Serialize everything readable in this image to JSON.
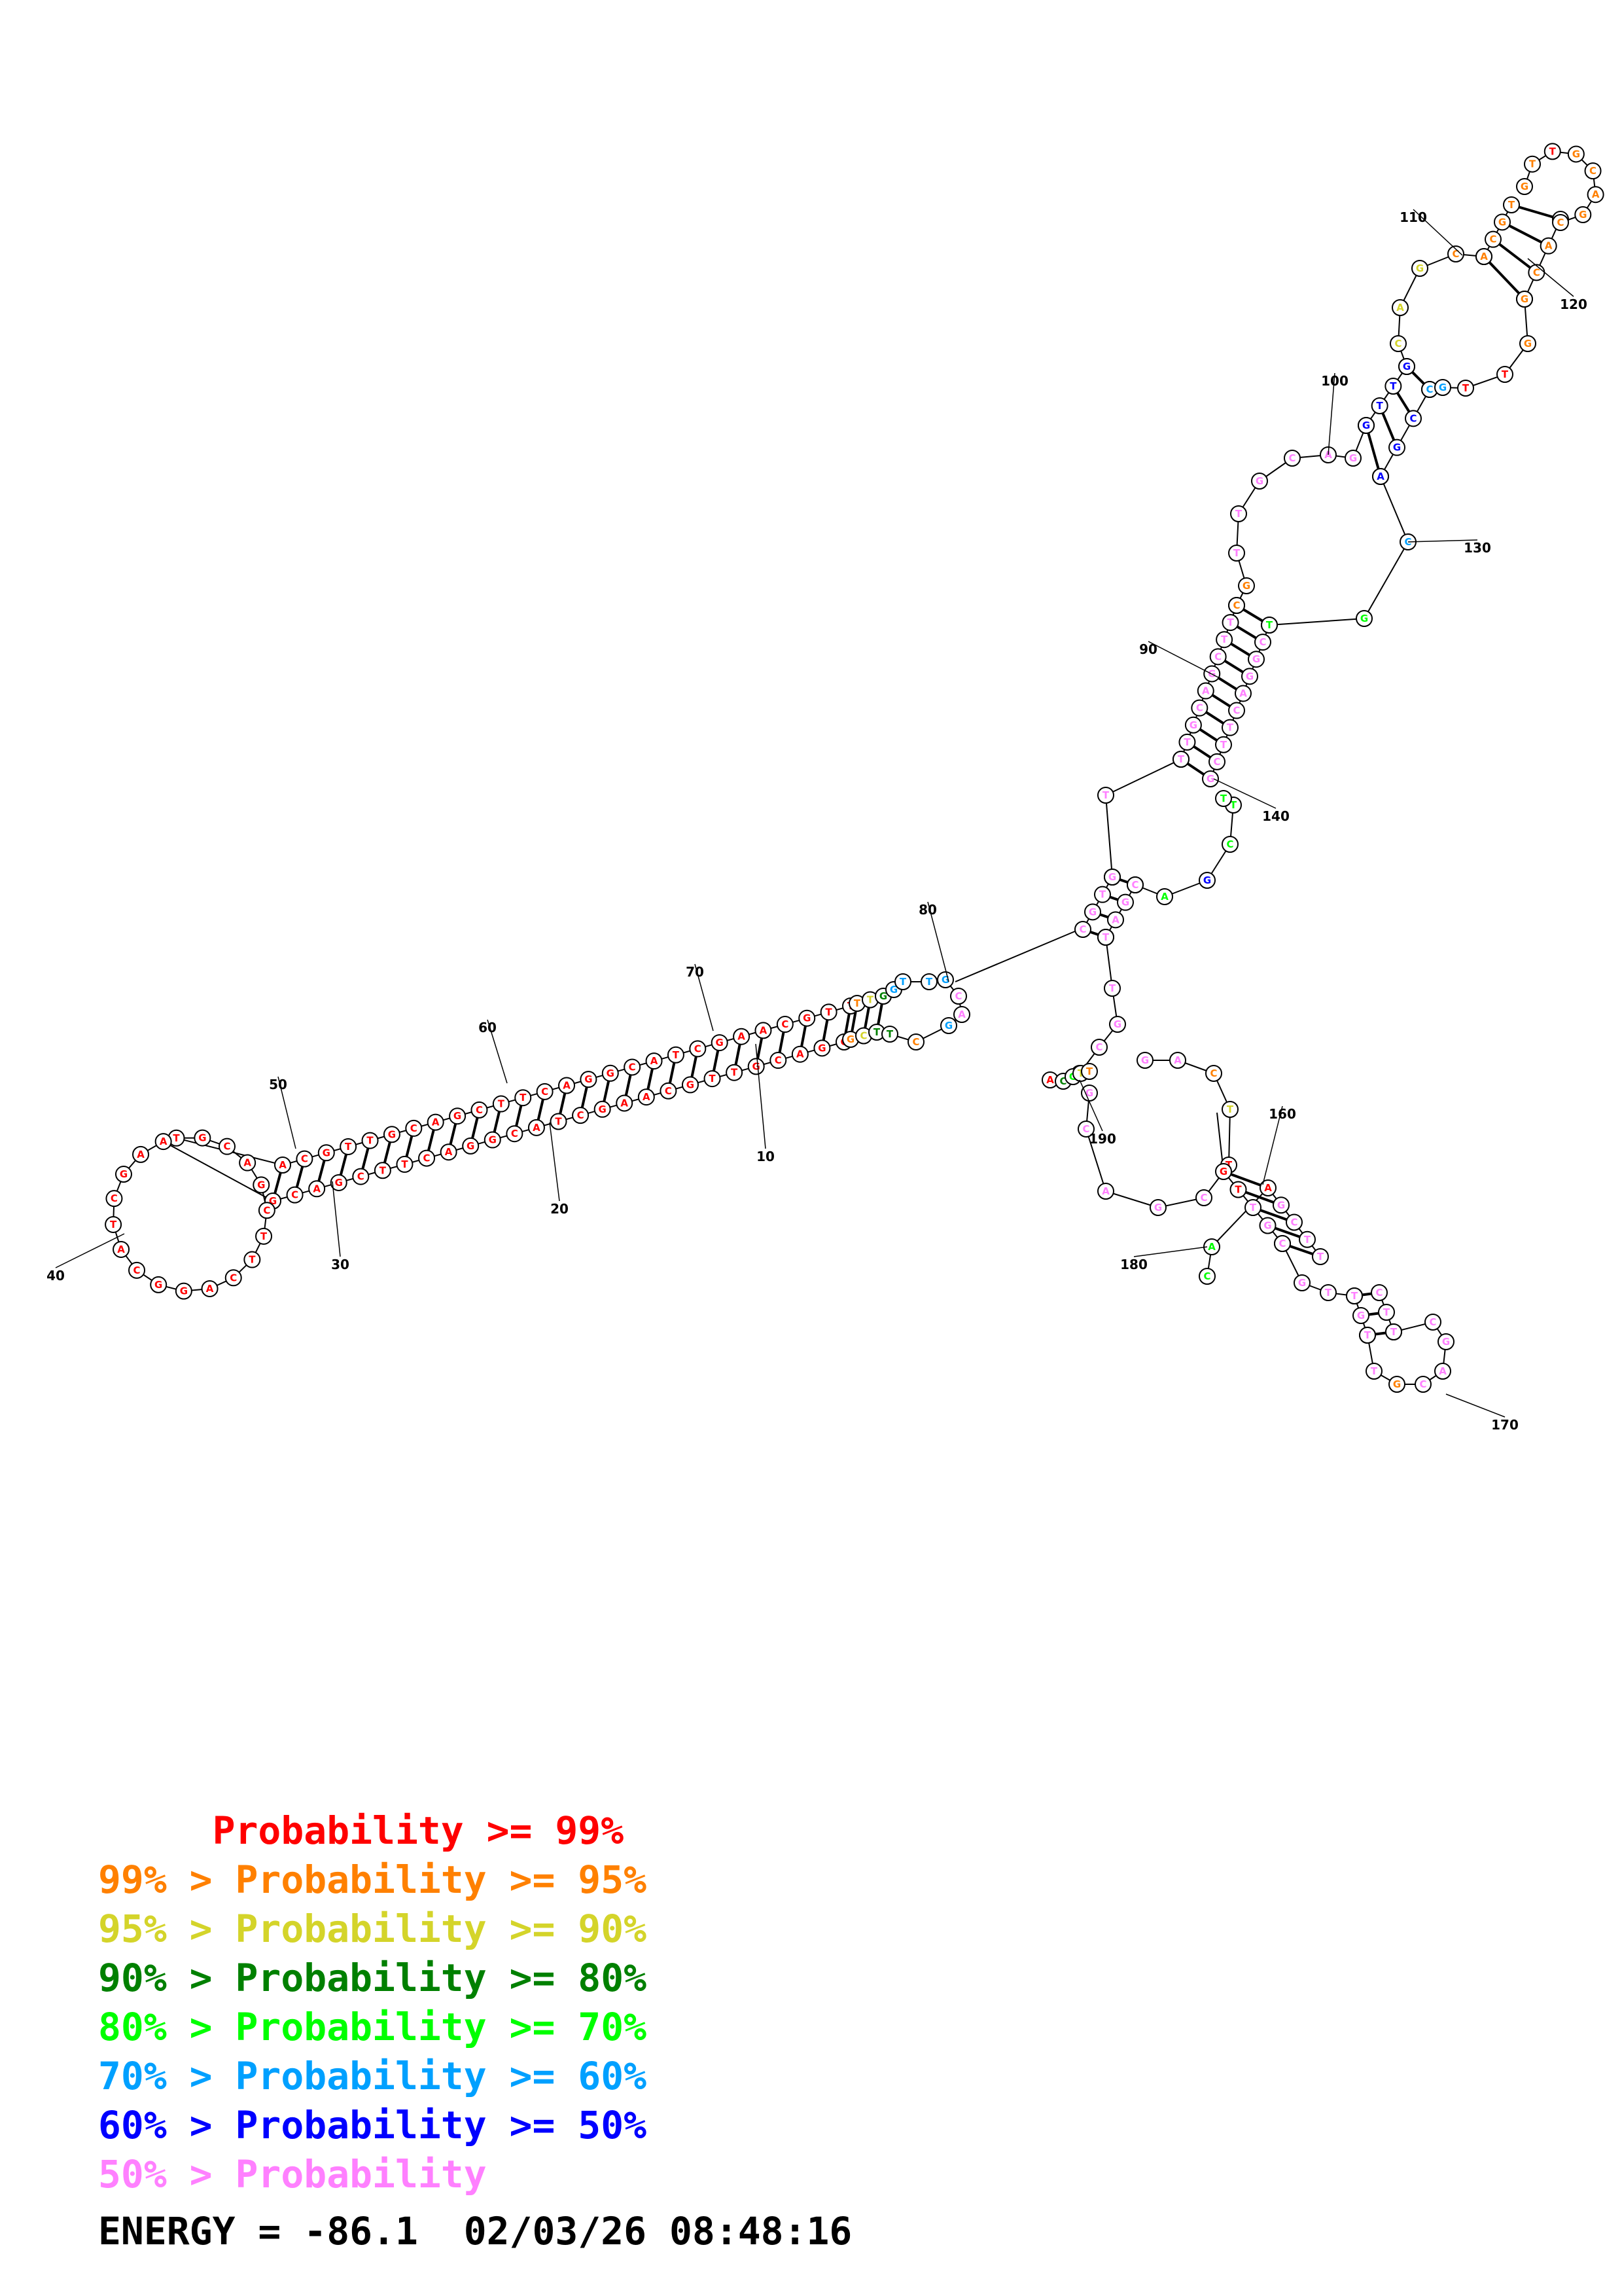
{
  "colors": {
    "p99": "#ff0000",
    "p95": "#ff8000",
    "p90": "#d4d42a",
    "p80": "#008000",
    "p70": "#00ff00",
    "p60": "#00a0ff",
    "p50": "#0000ff",
    "plow": "#ff80ff"
  },
  "position_labels": [
    "10",
    "20",
    "30",
    "40",
    "50",
    "60",
    "70",
    "80",
    "90",
    "100",
    "110",
    "120",
    "130",
    "140",
    "160",
    "170",
    "180",
    "190"
  ],
  "legend": [
    {
      "text": "     Probability >= 99%",
      "color_key": "p99"
    },
    {
      "text": "99% > Probability >= 95%",
      "color_key": "p95"
    },
    {
      "text": "95% > Probability >= 90%",
      "color_key": "p90"
    },
    {
      "text": "90% > Probability >= 80%",
      "color_key": "p80"
    },
    {
      "text": "80% > Probability >= 70%",
      "color_key": "p70"
    },
    {
      "text": "70% > Probability >= 60%",
      "color_key": "p60"
    },
    {
      "text": "60% > Probability >= 50%",
      "color_key": "p50"
    },
    {
      "text": "50% > Probability",
      "color_key": "plow"
    }
  ],
  "footer": {
    "energy_text": "ENERGY = -86.1",
    "datetime_text": "02/03/26 08:48:16"
  }
}
